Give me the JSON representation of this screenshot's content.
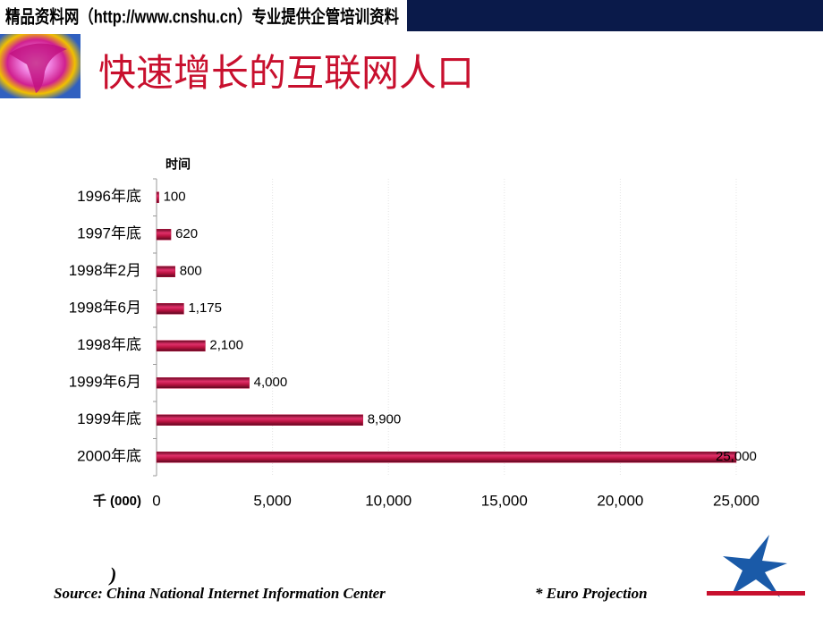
{
  "header": {
    "banner": "精品资料网（http://www.cnshu.cn）专业提供企管培训资料",
    "title": "快速增长的互联网人口"
  },
  "chart_data": {
    "type": "hbar",
    "y_label": "时间",
    "x_label": "千 (000)",
    "categories": [
      "1996年底",
      "1997年底",
      "1998年2月",
      "1998年6月",
      "1998年底",
      "1999年6月",
      "1999年底",
      "2000年底"
    ],
    "values": [
      100,
      620,
      800,
      1175,
      2100,
      4000,
      8900,
      25000
    ],
    "value_labels": [
      "100",
      "620",
      "800",
      "1,175",
      "2,100",
      "4,000",
      "8,900",
      "25,000"
    ],
    "color": "#b8123f",
    "xlim": [
      0,
      25000
    ],
    "xticks": [
      0,
      {
        "value": 5000,
        "label": "5,000"
      },
      {
        "value": 10000,
        "label": "10,000"
      },
      {
        "value": 15000,
        "label": "15,000"
      },
      {
        "value": 20000,
        "label": "20,000"
      },
      {
        "value": 25000,
        "label": "25,000"
      }
    ],
    "grid": true
  },
  "footer": {
    "stray": ")",
    "source": "Source: China National Internet Information Center",
    "note": "* Euro Projection"
  }
}
